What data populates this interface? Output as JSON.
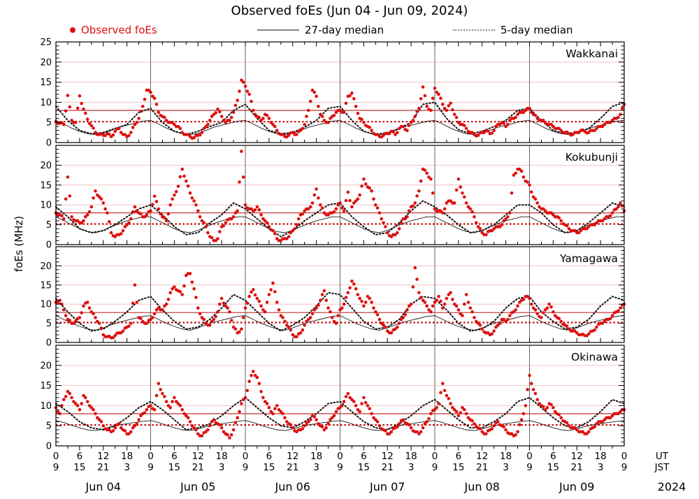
{
  "title": "Observed foEs (Jun 04 - Jun 09, 2024)",
  "legend": {
    "observed_label": "Observed foEs",
    "median27_label": "27-day median",
    "median5_label": "5-day median"
  },
  "ylabel": "foEs (MHz)",
  "xaxis": {
    "ut_ticks": [
      "0",
      "6",
      "12",
      "18"
    ],
    "jst_ticks": [
      "9",
      "15",
      "21",
      "3"
    ],
    "final_ut": "0",
    "final_jst": "9",
    "ut_label": "UT",
    "jst_label": "JST",
    "days": [
      "Jun 04",
      "Jun 05",
      "Jun 06",
      "Jun 07",
      "Jun 08",
      "Jun 09"
    ],
    "year": "2024"
  },
  "colors": {
    "observed": "#dd1111",
    "median27": "#1a1a1a",
    "median5": "#111111",
    "threshold_solid": "#c84444",
    "threshold_dotted": "#cc0000",
    "grid_pink": "#f3c3c3",
    "day_line": "#666666",
    "frame": "#000000"
  },
  "chart_data": [
    {
      "type": "scatter",
      "station": "Wakkanai",
      "xlim": [
        0,
        144
      ],
      "ylim": [
        0,
        25
      ],
      "yticks": [
        0,
        5,
        10,
        15,
        20,
        25
      ],
      "thresholds": {
        "solid_red": 8.0,
        "dotted_red": 5.2
      },
      "x_unit": "hours since Jun 04 00:00 UT",
      "observed_step_h": 1,
      "observed": [
        5.2,
        4.8,
        4.5,
        11.7,
        5.5,
        5.0,
        11.6,
        8.3,
        5.8,
        4.2,
        2.5,
        2.0,
        1.8,
        2.2,
        1.5,
        2.8,
        3.5,
        2.0,
        1.5,
        2.5,
        4.5,
        6.0,
        9.0,
        13.0,
        12.5,
        11.0,
        7.5,
        6.5,
        5.5,
        5.0,
        4.5,
        4.0,
        2.5,
        2.0,
        1.5,
        1.2,
        1.8,
        2.5,
        4.0,
        5.5,
        7.0,
        8.3,
        6.5,
        5.0,
        5.5,
        7.5,
        10.5,
        15.5,
        14.0,
        12.0,
        8.0,
        6.5,
        5.5,
        7.0,
        6.0,
        4.5,
        3.0,
        2.0,
        1.5,
        1.8,
        2.5,
        2.0,
        3.0,
        4.5,
        8.0,
        13.0,
        11.5,
        7.0,
        5.5,
        5.0,
        6.5,
        7.5,
        8.0,
        7.5,
        11.5,
        12.3,
        9.0,
        6.0,
        5.0,
        4.0,
        3.0,
        2.0,
        1.5,
        1.8,
        2.2,
        2.8,
        2.0,
        3.5,
        4.0,
        3.0,
        5.0,
        6.5,
        8.5,
        13.8,
        9.0,
        8.0,
        13.5,
        12.0,
        9.5,
        8.0,
        9.8,
        7.0,
        5.0,
        4.5,
        3.5,
        2.5,
        2.0,
        1.8,
        2.5,
        3.0,
        2.2,
        3.0,
        4.5,
        5.0,
        4.0,
        5.5,
        6.0,
        7.0,
        7.5,
        8.0,
        8.5,
        7.0,
        6.0,
        5.5,
        5.0,
        4.5,
        4.0,
        3.5,
        3.0,
        2.5,
        2.2,
        2.0,
        2.5,
        3.0,
        2.8,
        2.5,
        3.0,
        3.5,
        4.0,
        4.5,
        5.0,
        5.5,
        6.0,
        7.0,
        9.5
      ],
      "median27_daily_step2": [
        5.5,
        4.6,
        3.6,
        2.8,
        2.2,
        2.0,
        2.3,
        3.0,
        3.8,
        4.3,
        4.8,
        5.3
      ],
      "median5_step3": [
        9.0,
        5.5,
        3.0,
        2.2,
        2.5,
        3.5,
        4.5,
        7.5,
        8.5,
        5.0,
        2.8,
        2.0,
        2.8,
        4.0,
        5.0,
        8.0,
        9.5,
        6.0,
        3.0,
        2.2,
        2.5,
        3.8,
        5.5,
        8.5,
        9.0,
        5.5,
        2.8,
        2.0,
        2.5,
        3.5,
        5.0,
        9.5,
        10.0,
        6.0,
        3.2,
        2.2,
        2.8,
        4.0,
        5.5,
        8.0,
        8.5,
        5.5,
        3.0,
        2.2,
        2.5,
        3.5,
        6.0,
        9.0,
        10.0
      ]
    },
    {
      "type": "scatter",
      "station": "Kokubunji",
      "xlim": [
        0,
        144
      ],
      "ylim": [
        0,
        25
      ],
      "yticks": [
        0,
        5,
        10,
        15,
        20
      ],
      "thresholds": {
        "solid_red": 8.0,
        "dotted_red": 5.2
      },
      "x_unit": "hours since Jun 04 00:00 UT",
      "observed_step_h": 1,
      "observed": [
        8.0,
        7.5,
        6.5,
        17.0,
        7.0,
        6.0,
        5.5,
        6.0,
        7.5,
        9.5,
        13.5,
        12.0,
        10.5,
        8.0,
        3.0,
        2.0,
        2.5,
        3.5,
        5.0,
        6.5,
        9.5,
        8.0,
        7.0,
        7.5,
        8.5,
        12.2,
        9.0,
        7.0,
        6.0,
        10.0,
        12.5,
        14.7,
        19.0,
        16.0,
        13.0,
        11.0,
        8.5,
        6.0,
        4.5,
        2.0,
        1.0,
        1.5,
        4.5,
        5.5,
        6.5,
        7.0,
        8.5,
        23.5,
        10.0,
        9.0,
        8.5,
        9.5,
        7.5,
        6.0,
        4.5,
        3.5,
        1.5,
        1.0,
        1.5,
        2.0,
        3.5,
        5.0,
        7.5,
        8.5,
        9.0,
        10.5,
        14.0,
        10.0,
        8.0,
        7.5,
        8.0,
        9.0,
        10.5,
        8.5,
        13.2,
        9.5,
        11.0,
        12.5,
        16.5,
        14.5,
        13.5,
        10.0,
        8.0,
        5.5,
        3.0,
        2.0,
        2.5,
        4.0,
        6.5,
        7.0,
        9.5,
        10.5,
        13.5,
        19.0,
        18.0,
        16.5,
        9.0,
        8.5,
        8.0,
        10.5,
        11.0,
        10.5,
        16.5,
        13.0,
        10.5,
        9.0,
        7.0,
        4.5,
        3.0,
        2.5,
        3.5,
        4.0,
        4.5,
        5.0,
        6.5,
        8.0,
        17.5,
        19.0,
        18.5,
        16.0,
        15.0,
        12.0,
        10.5,
        9.0,
        8.5,
        8.0,
        7.5,
        7.0,
        6.0,
        5.0,
        4.0,
        3.5,
        3.0,
        3.5,
        4.0,
        4.5,
        5.0,
        5.5,
        6.0,
        6.5,
        7.0,
        8.0,
        9.0,
        10.5,
        8.5
      ],
      "median27_daily_step2": [
        7.0,
        6.0,
        5.0,
        4.0,
        3.3,
        3.0,
        3.6,
        4.5,
        5.3,
        6.0,
        6.5,
        7.0
      ],
      "median5_step3": [
        9.5,
        7.0,
        4.0,
        3.0,
        3.5,
        5.0,
        7.0,
        9.0,
        10.0,
        7.5,
        4.5,
        2.5,
        3.0,
        5.5,
        7.5,
        10.5,
        9.0,
        6.5,
        4.0,
        2.0,
        3.5,
        6.0,
        8.0,
        10.0,
        10.5,
        7.0,
        4.5,
        2.5,
        3.0,
        5.5,
        8.5,
        11.0,
        9.5,
        7.5,
        5.0,
        3.0,
        3.5,
        5.0,
        7.5,
        10.0,
        10.0,
        8.0,
        5.0,
        3.0,
        3.5,
        5.5,
        8.0,
        10.5,
        9.5
      ]
    },
    {
      "type": "scatter",
      "station": "Yamagawa",
      "xlim": [
        0,
        144
      ],
      "ylim": [
        0,
        25
      ],
      "yticks": [
        0,
        5,
        10,
        15,
        20
      ],
      "thresholds": {
        "solid_red": 7.8,
        "dotted_red": 5.2
      },
      "x_unit": "hours since Jun 04 00:00 UT",
      "observed_step_h": 1,
      "observed": [
        10.5,
        11.0,
        8.5,
        6.0,
        5.0,
        5.5,
        6.5,
        9.5,
        10.5,
        8.0,
        6.5,
        5.0,
        2.0,
        1.5,
        1.2,
        1.8,
        2.5,
        3.0,
        4.0,
        5.0,
        15.0,
        6.5,
        5.5,
        5.0,
        6.0,
        7.5,
        9.0,
        8.5,
        10.0,
        13.0,
        14.5,
        13.5,
        12.5,
        17.5,
        18.0,
        14.0,
        9.0,
        6.5,
        5.0,
        4.5,
        6.0,
        8.0,
        11.5,
        9.5,
        8.0,
        4.0,
        2.5,
        3.5,
        9.0,
        12.0,
        13.8,
        11.5,
        9.5,
        8.0,
        12.5,
        15.5,
        10.5,
        7.0,
        5.5,
        4.0,
        2.0,
        1.5,
        2.5,
        4.5,
        6.0,
        7.5,
        9.0,
        11.0,
        13.5,
        9.0,
        6.5,
        5.0,
        8.5,
        10.0,
        13.0,
        16.0,
        14.0,
        11.5,
        9.5,
        12.0,
        10.5,
        8.0,
        6.0,
        4.5,
        3.0,
        2.5,
        3.5,
        5.0,
        6.5,
        8.5,
        10.0,
        19.5,
        13.0,
        11.0,
        9.5,
        8.0,
        10.5,
        12.0,
        9.0,
        11.5,
        13.0,
        10.0,
        8.5,
        7.0,
        12.5,
        9.0,
        6.5,
        5.0,
        3.5,
        2.5,
        2.0,
        3.0,
        4.5,
        6.0,
        5.5,
        7.0,
        8.0,
        9.5,
        11.0,
        12.0,
        11.5,
        9.0,
        7.5,
        6.5,
        8.5,
        10.0,
        8.0,
        6.5,
        5.5,
        4.5,
        3.5,
        3.0,
        2.5,
        2.0,
        1.8,
        2.2,
        3.0,
        4.0,
        5.0,
        5.5,
        6.0,
        7.0,
        8.0,
        9.0,
        10.0
      ],
      "median27_daily_step2": [
        7.0,
        6.0,
        5.0,
        4.2,
        3.5,
        3.2,
        3.8,
        4.6,
        5.3,
        5.8,
        6.3,
        6.8
      ],
      "median5_step3": [
        11.5,
        8.0,
        5.0,
        3.0,
        3.5,
        5.5,
        8.0,
        11.0,
        12.0,
        8.5,
        5.5,
        3.5,
        4.0,
        6.0,
        9.0,
        12.5,
        11.0,
        8.0,
        5.0,
        3.0,
        4.5,
        6.5,
        9.5,
        13.0,
        12.5,
        9.0,
        5.5,
        3.5,
        4.0,
        6.0,
        10.0,
        12.0,
        11.5,
        8.5,
        5.0,
        3.0,
        3.5,
        5.5,
        9.0,
        11.5,
        12.0,
        8.0,
        5.5,
        3.5,
        4.0,
        6.0,
        9.5,
        12.0,
        11.0
      ]
    },
    {
      "type": "scatter",
      "station": "Okinawa",
      "xlim": [
        0,
        144
      ],
      "ylim": [
        0,
        25
      ],
      "yticks": [
        0,
        5,
        10,
        15,
        20
      ],
      "thresholds": {
        "solid_red": 8.0,
        "dotted_red": 5.2
      },
      "x_unit": "hours since Jun 04 00:00 UT",
      "observed_step_h": 1,
      "observed": [
        9.5,
        8.0,
        11.5,
        13.5,
        12.0,
        10.5,
        9.0,
        12.5,
        11.0,
        9.5,
        8.0,
        6.5,
        5.0,
        4.0,
        3.5,
        4.5,
        5.5,
        4.0,
        3.0,
        3.5,
        5.0,
        6.5,
        8.0,
        9.0,
        10.0,
        9.0,
        15.5,
        13.0,
        11.0,
        9.5,
        12.0,
        10.5,
        9.0,
        7.5,
        6.0,
        4.5,
        3.0,
        2.5,
        3.5,
        5.0,
        6.5,
        5.5,
        4.5,
        3.0,
        2.0,
        4.0,
        7.0,
        10.5,
        12.0,
        16.0,
        18.5,
        17.0,
        13.5,
        11.0,
        9.5,
        8.0,
        10.0,
        8.5,
        7.0,
        5.5,
        4.5,
        3.5,
        4.0,
        5.0,
        6.0,
        7.5,
        6.5,
        5.0,
        4.0,
        5.5,
        7.0,
        8.5,
        9.5,
        11.0,
        13.0,
        11.5,
        10.0,
        8.5,
        12.0,
        10.0,
        8.0,
        6.5,
        5.0,
        4.0,
        3.0,
        3.5,
        4.5,
        5.5,
        6.5,
        5.5,
        4.5,
        3.5,
        3.0,
        4.5,
        6.0,
        8.0,
        9.0,
        10.5,
        15.5,
        12.5,
        10.5,
        9.0,
        7.5,
        9.5,
        8.0,
        6.5,
        5.5,
        4.5,
        3.5,
        3.0,
        4.0,
        5.0,
        6.0,
        5.0,
        4.0,
        3.0,
        2.5,
        3.5,
        6.5,
        10.0,
        17.5,
        14.0,
        11.5,
        10.0,
        9.0,
        10.5,
        9.5,
        8.0,
        7.0,
        6.0,
        5.0,
        4.5,
        4.0,
        3.5,
        3.0,
        3.5,
        4.5,
        5.5,
        6.0,
        6.5,
        7.0,
        7.5,
        8.0,
        8.5,
        9.0
      ],
      "median27_daily_step2": [
        6.3,
        5.8,
        5.1,
        4.5,
        4.0,
        3.8,
        4.2,
        4.8,
        5.2,
        5.5,
        5.8,
        6.1
      ],
      "median5_step3": [
        10.5,
        8.5,
        6.0,
        4.5,
        4.0,
        5.0,
        7.0,
        9.5,
        11.0,
        9.0,
        6.5,
        4.0,
        4.5,
        5.5,
        7.5,
        10.0,
        12.0,
        9.5,
        7.0,
        5.0,
        4.5,
        6.0,
        8.0,
        10.5,
        11.0,
        8.5,
        6.0,
        4.5,
        4.0,
        5.5,
        7.5,
        10.0,
        11.5,
        9.0,
        6.5,
        4.5,
        4.5,
        6.0,
        8.0,
        11.0,
        12.0,
        9.5,
        7.0,
        5.0,
        4.5,
        6.0,
        8.5,
        11.5,
        10.5
      ]
    }
  ]
}
